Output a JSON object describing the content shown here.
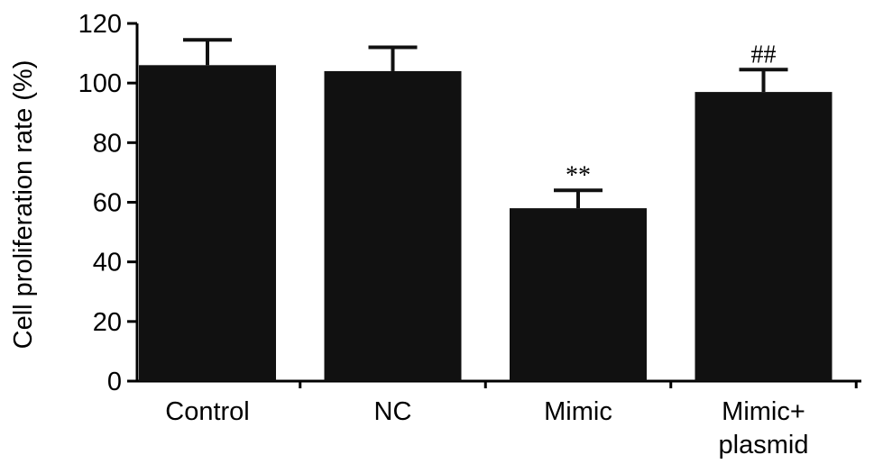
{
  "chart_data": {
    "type": "bar",
    "title": "",
    "xlabel": "",
    "ylabel": "Cell proliferation rate (%)",
    "ylim": [
      0,
      120
    ],
    "yticks": [
      0,
      20,
      40,
      60,
      80,
      100,
      120
    ],
    "grid": false,
    "bar_color": "#111111",
    "categories": [
      {
        "lines": [
          "Control"
        ]
      },
      {
        "lines": [
          "NC"
        ]
      },
      {
        "lines": [
          "Mimic"
        ]
      },
      {
        "lines": [
          "Mimic+",
          "plasmid"
        ]
      }
    ],
    "values": [
      106,
      104,
      58,
      97
    ],
    "errors": [
      8.5,
      8,
      6,
      7.5
    ],
    "annotations": [
      "",
      "",
      "**",
      "##"
    ]
  }
}
